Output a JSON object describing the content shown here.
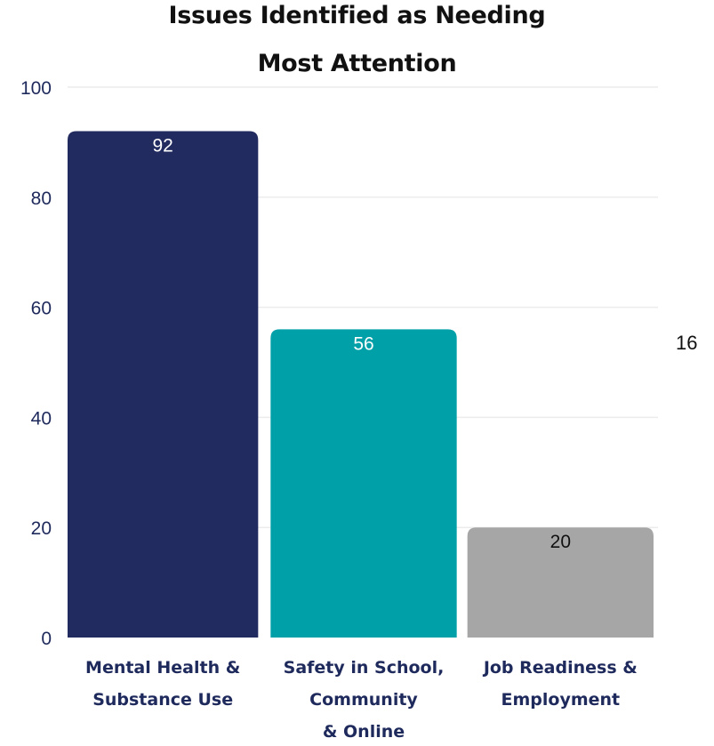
{
  "chart_data": {
    "type": "bar",
    "title_lines": [
      "Issues Identified as Needing",
      "Most Attention"
    ],
    "categories": [
      [
        "Mental Health &",
        "Substance Use"
      ],
      [
        "Safety in School,",
        "Community",
        "& Online"
      ],
      [
        "Job Readiness &",
        "Employment"
      ]
    ],
    "values": [
      92,
      56,
      20
    ],
    "colors": [
      "#222b5f",
      "#00a0a8",
      "#a6a6a6"
    ],
    "label_colors": [
      "#ffffff",
      "#ffffff",
      "#111111"
    ],
    "y_ticks": [
      0,
      20,
      40,
      60,
      80,
      100
    ],
    "ylim": [
      0,
      100
    ],
    "grid": true,
    "xlabel": "",
    "ylabel": "",
    "axis_label_color": "#1f2a5c",
    "side_note": "16"
  }
}
